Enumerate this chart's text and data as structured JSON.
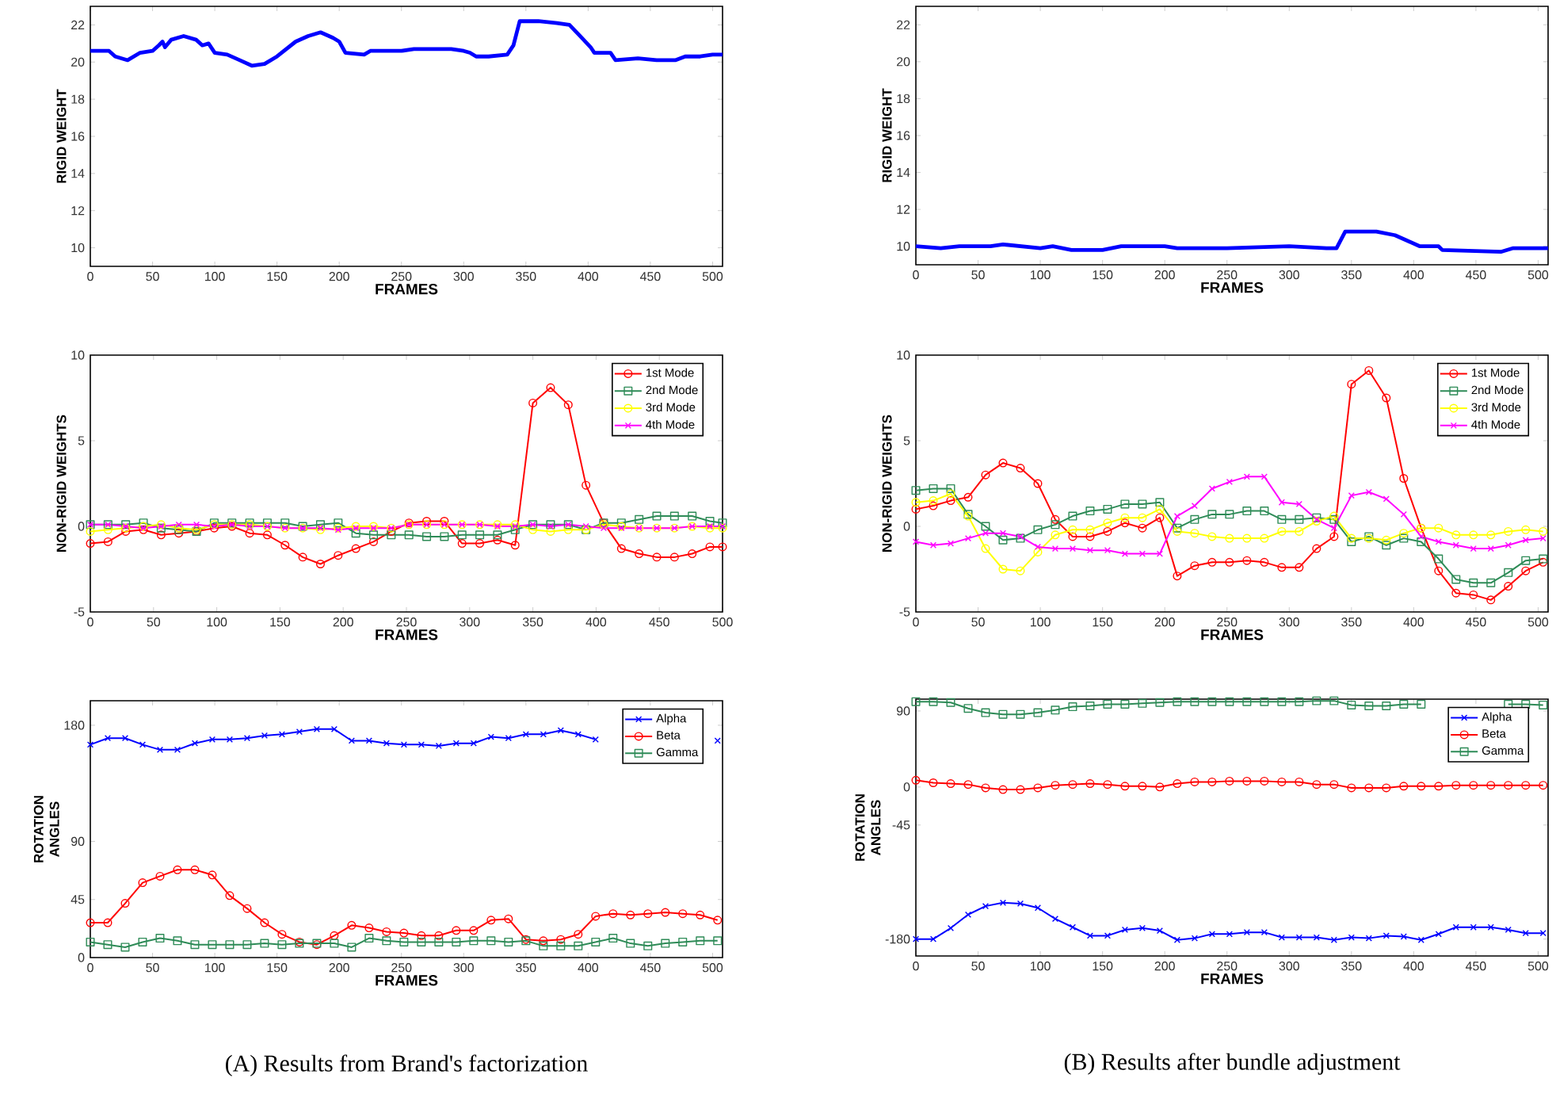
{
  "chart_data": [
    {
      "type": "line",
      "xlabel": "FRAMES",
      "ylabel": "RIGID WEIGHT",
      "xlim": [
        0,
        508
      ],
      "ylim": [
        9,
        23
      ],
      "xticks": [
        0,
        50,
        100,
        150,
        200,
        250,
        300,
        350,
        400,
        450,
        500
      ],
      "yticks": [
        10,
        12,
        14,
        16,
        18,
        20,
        22
      ],
      "grid": false,
      "legend": false,
      "x": [
        0,
        15,
        20,
        30,
        40,
        50,
        55,
        58,
        60,
        65,
        75,
        85,
        90,
        95,
        100,
        110,
        120,
        130,
        140,
        150,
        165,
        175,
        185,
        195,
        200,
        205,
        220,
        225,
        250,
        260,
        290,
        300,
        305,
        310,
        320,
        335,
        340,
        345,
        360,
        375,
        385,
        395,
        402,
        405,
        418,
        422,
        440,
        455,
        470,
        478,
        490,
        500,
        508
      ],
      "series": [
        {
          "color": "#0000ff",
          "marker": "none",
          "values": [
            20.6,
            20.6,
            20.3,
            20.1,
            20.5,
            20.6,
            20.9,
            21.1,
            20.8,
            21.2,
            21.4,
            21.2,
            20.9,
            21.0,
            20.5,
            20.4,
            20.1,
            19.8,
            19.9,
            20.3,
            21.1,
            21.4,
            21.6,
            21.3,
            21.1,
            20.5,
            20.4,
            20.6,
            20.6,
            20.7,
            20.7,
            20.6,
            20.5,
            20.3,
            20.3,
            20.4,
            20.9,
            22.2,
            22.2,
            22.1,
            22.0,
            21.3,
            20.8,
            20.5,
            20.5,
            20.1,
            20.2,
            20.1,
            20.1,
            20.3,
            20.3,
            20.4,
            20.4
          ]
        }
      ]
    },
    {
      "type": "line",
      "xlabel": "FRAMES",
      "ylabel": "RIGID WEIGHT",
      "xlim": [
        0,
        508
      ],
      "ylim": [
        9,
        23
      ],
      "xticks": [
        0,
        50,
        100,
        150,
        200,
        250,
        300,
        350,
        400,
        450,
        500
      ],
      "yticks": [
        10,
        12,
        14,
        16,
        18,
        20,
        22
      ],
      "grid": false,
      "legend": false,
      "x": [
        0,
        20,
        35,
        50,
        60,
        70,
        100,
        110,
        125,
        150,
        165,
        200,
        210,
        250,
        300,
        330,
        338,
        345,
        370,
        385,
        395,
        405,
        420,
        423,
        470,
        480,
        508
      ],
      "series": [
        {
          "color": "#0000ff",
          "marker": "none",
          "values": [
            10.0,
            9.9,
            10.0,
            10.0,
            10.0,
            10.1,
            9.9,
            10.0,
            9.8,
            9.8,
            10.0,
            10.0,
            9.9,
            9.9,
            10.0,
            9.9,
            9.9,
            10.8,
            10.8,
            10.6,
            10.3,
            10.0,
            10.0,
            9.8,
            9.7,
            9.9,
            9.9
          ]
        }
      ]
    },
    {
      "type": "line",
      "xlabel": "FRAMES",
      "ylabel": "NON-RIGID  WEIGHTS",
      "xlim": [
        0,
        500
      ],
      "ylim": [
        -5,
        10
      ],
      "xticks": [
        0,
        50,
        100,
        150,
        200,
        250,
        300,
        350,
        400,
        450,
        500
      ],
      "yticks": [
        -5,
        0,
        5,
        10
      ],
      "grid": false,
      "legend": "top right",
      "x": [
        0,
        14,
        28,
        42,
        56,
        70,
        84,
        98,
        112,
        126,
        140,
        154,
        168,
        182,
        196,
        210,
        224,
        238,
        252,
        266,
        280,
        294,
        308,
        322,
        336,
        350,
        364,
        378,
        392,
        406,
        420,
        434,
        448,
        462,
        476,
        490,
        500
      ],
      "series": [
        {
          "name": "1st Mode",
          "color": "#ff0000",
          "marker": "circle",
          "values": [
            -1.0,
            -0.9,
            -0.3,
            -0.2,
            -0.5,
            -0.4,
            -0.3,
            -0.1,
            0,
            -0.4,
            -0.5,
            -1.1,
            -1.8,
            -2.2,
            -1.7,
            -1.3,
            -0.9,
            -0.3,
            0.2,
            0.3,
            0.3,
            -1.0,
            -1.0,
            -0.8,
            -1.1,
            7.2,
            8.1,
            7.1,
            2.4,
            0.2,
            -1.3,
            -1.6,
            -1.8,
            -1.8,
            -1.6,
            -1.2,
            -1.2
          ]
        },
        {
          "name": "2nd Mode",
          "color": "#2e8b57",
          "marker": "square",
          "values": [
            0.1,
            0.1,
            0.1,
            0.2,
            -0.1,
            -0.2,
            -0.3,
            0.2,
            0.2,
            0.2,
            0.2,
            0.2,
            0.0,
            0.1,
            0.2,
            -0.4,
            -0.5,
            -0.5,
            -0.5,
            -0.6,
            -0.6,
            -0.5,
            -0.5,
            -0.5,
            -0.2,
            0.1,
            0.1,
            0.1,
            -0.2,
            0.2,
            0.2,
            0.4,
            0.6,
            0.6,
            0.6,
            0.3,
            0.2
          ]
        },
        {
          "name": "3rd Mode",
          "color": "#ffff00",
          "marker": "circle",
          "values": [
            -0.3,
            -0.2,
            -0.1,
            0.0,
            0.1,
            -0.1,
            -0.2,
            0.1,
            0.1,
            0.1,
            0.0,
            -0.1,
            -0.1,
            -0.2,
            -0.1,
            0.0,
            0.0,
            -0.1,
            0.1,
            0.1,
            0.1,
            0.1,
            0.1,
            0.1,
            0.1,
            -0.2,
            -0.3,
            -0.2,
            -0.2,
            0.1,
            0.0,
            -0.1,
            -0.1,
            -0.1,
            0.0,
            -0.1,
            -0.1
          ]
        },
        {
          "name": "4th Mode",
          "color": "#ff00ff",
          "marker": "cross",
          "values": [
            0.1,
            0.1,
            0.0,
            -0.1,
            0.0,
            0.1,
            0.1,
            0.0,
            0.1,
            0.0,
            0.0,
            -0.1,
            -0.1,
            -0.1,
            -0.2,
            -0.1,
            -0.1,
            -0.1,
            0.1,
            0.1,
            0.1,
            0.1,
            0.1,
            0.0,
            0.0,
            0.1,
            0.0,
            0.1,
            0.0,
            -0.1,
            -0.1,
            -0.1,
            -0.1,
            -0.1,
            0.0,
            0.0,
            0.0
          ]
        }
      ]
    },
    {
      "type": "line",
      "xlabel": "FRAMES",
      "ylabel": "NON-RIGID  WEIGHTS",
      "xlim": [
        0,
        508
      ],
      "ylim": [
        -5,
        10
      ],
      "xticks": [
        0,
        50,
        100,
        150,
        200,
        250,
        300,
        350,
        400,
        450,
        500
      ],
      "yticks": [
        -5,
        0,
        5,
        10
      ],
      "grid": false,
      "legend": "top right",
      "x": [
        0,
        14,
        28,
        42,
        56,
        70,
        84,
        98,
        112,
        126,
        140,
        154,
        168,
        182,
        196,
        210,
        224,
        238,
        252,
        266,
        280,
        294,
        308,
        322,
        336,
        350,
        364,
        378,
        392,
        406,
        420,
        434,
        448,
        462,
        476,
        490,
        504
      ],
      "series": [
        {
          "name": "1st Mode",
          "color": "#ff0000",
          "marker": "circle",
          "values": [
            1.0,
            1.2,
            1.5,
            1.7,
            3.0,
            3.7,
            3.4,
            2.5,
            0.4,
            -0.6,
            -0.6,
            -0.3,
            0.2,
            -0.1,
            0.5,
            -2.9,
            -2.3,
            -2.1,
            -2.1,
            -2.0,
            -2.1,
            -2.4,
            -2.4,
            -1.3,
            -0.6,
            8.3,
            9.1,
            7.5,
            2.8,
            -0.1,
            -2.6,
            -3.9,
            -4.0,
            -4.3,
            -3.5,
            -2.6,
            -2.1
          ]
        },
        {
          "name": "2nd Mode",
          "color": "#2e8b57",
          "marker": "square",
          "values": [
            2.1,
            2.2,
            2.2,
            0.7,
            0.0,
            -0.8,
            -0.7,
            -0.2,
            0.1,
            0.6,
            0.9,
            1.0,
            1.3,
            1.3,
            1.4,
            -0.1,
            0.4,
            0.7,
            0.7,
            0.9,
            0.9,
            0.4,
            0.4,
            0.5,
            0.4,
            -0.9,
            -0.6,
            -1.1,
            -0.7,
            -0.9,
            -1.9,
            -3.1,
            -3.3,
            -3.3,
            -2.7,
            -2.0,
            -1.9
          ]
        },
        {
          "name": "3rd Mode",
          "color": "#ffff00",
          "marker": "circle",
          "values": [
            1.4,
            1.5,
            1.9,
            0.6,
            -1.3,
            -2.5,
            -2.6,
            -1.5,
            -0.5,
            -0.2,
            -0.2,
            0.2,
            0.5,
            0.5,
            1.0,
            -0.3,
            -0.4,
            -0.6,
            -0.7,
            -0.7,
            -0.7,
            -0.3,
            -0.3,
            0.3,
            0.6,
            -0.7,
            -0.7,
            -0.8,
            -0.4,
            -0.1,
            -0.1,
            -0.5,
            -0.5,
            -0.5,
            -0.3,
            -0.2,
            -0.3
          ]
        },
        {
          "name": "4th Mode",
          "color": "#ff00ff",
          "marker": "cross",
          "values": [
            -0.9,
            -1.1,
            -1.0,
            -0.7,
            -0.4,
            -0.4,
            -0.6,
            -1.2,
            -1.3,
            -1.3,
            -1.4,
            -1.4,
            -1.6,
            -1.6,
            -1.6,
            0.6,
            1.2,
            2.2,
            2.6,
            2.9,
            2.9,
            1.4,
            1.3,
            0.4,
            -0.1,
            1.8,
            2.0,
            1.6,
            0.7,
            -0.6,
            -0.9,
            -1.1,
            -1.3,
            -1.3,
            -1.1,
            -0.8,
            -0.7
          ]
        }
      ]
    },
    {
      "type": "line",
      "xlabel": "FRAMES",
      "ylabel": "ROTATION ANGLES",
      "xlim": [
        0,
        508
      ],
      "ylim": [
        0,
        199
      ],
      "xticks": [
        0,
        50,
        100,
        150,
        200,
        250,
        300,
        350,
        400,
        450,
        500
      ],
      "yticks": [
        0,
        45,
        90,
        180
      ],
      "grid": false,
      "legend": "top right",
      "annotations": [
        "(A) Results from Brand's factorization"
      ],
      "x": [
        0,
        14,
        28,
        42,
        56,
        70,
        84,
        98,
        112,
        126,
        140,
        154,
        168,
        182,
        196,
        210,
        224,
        238,
        252,
        266,
        280,
        294,
        308,
        322,
        336,
        350,
        364,
        378,
        392,
        406,
        420,
        434,
        448,
        462,
        476,
        490,
        504
      ],
      "series": [
        {
          "name": "Alpha",
          "color": "#0000ff",
          "marker": "cross",
          "values": [
            165,
            170,
            170,
            165,
            161,
            161,
            166,
            169,
            169,
            170,
            172,
            173,
            175,
            177,
            177,
            168,
            168,
            166,
            165,
            165,
            164,
            166,
            166,
            171,
            170,
            173,
            173,
            176,
            173,
            169,
            null,
            null,
            null,
            null,
            null,
            null,
            168
          ]
        },
        {
          "name": "Beta",
          "color": "#ff0000",
          "marker": "circle",
          "values": [
            27,
            27,
            42,
            58,
            63,
            68,
            68,
            64,
            48,
            38,
            27,
            18,
            12,
            10,
            17,
            25,
            23,
            20,
            19,
            17,
            17,
            21,
            21,
            29,
            30,
            14,
            13,
            14,
            18,
            32,
            34,
            33,
            34,
            35,
            34,
            33,
            29
          ]
        },
        {
          "name": "Gamma",
          "color": "#2e8b57",
          "marker": "square",
          "values": [
            12,
            10,
            8,
            12,
            15,
            13,
            10,
            10,
            10,
            10,
            11,
            10,
            11,
            11,
            11,
            8,
            15,
            13,
            12,
            12,
            12,
            12,
            13,
            13,
            12,
            13,
            9,
            9,
            9,
            12,
            15,
            11,
            9,
            11,
            12,
            13,
            13
          ]
        }
      ]
    },
    {
      "type": "line",
      "xlabel": "FRAMES",
      "ylabel": "ROTATION ANGLES",
      "xlim": [
        0,
        508
      ],
      "ylim": [
        -200,
        104
      ],
      "xticks": [
        0,
        50,
        100,
        150,
        200,
        250,
        300,
        350,
        400,
        450,
        500
      ],
      "yticks": [
        -180,
        -45,
        0,
        90
      ],
      "grid": false,
      "legend": "top right",
      "annotations": [
        "(B) Results after bundle adjustment"
      ],
      "x": [
        0,
        14,
        28,
        42,
        56,
        70,
        84,
        98,
        112,
        126,
        140,
        154,
        168,
        182,
        196,
        210,
        224,
        238,
        252,
        266,
        280,
        294,
        308,
        322,
        336,
        350,
        364,
        378,
        392,
        406,
        420,
        434,
        448,
        462,
        476,
        490,
        504
      ],
      "series": [
        {
          "name": "Alpha",
          "color": "#0000ff",
          "marker": "cross",
          "values": [
            -180,
            -180,
            -167,
            -151,
            -141,
            -137,
            -138,
            -143,
            -156,
            -166,
            -176,
            -176,
            -169,
            -167,
            -170,
            -181,
            -179,
            -174,
            -174,
            -172,
            -172,
            -178,
            -178,
            -178,
            -181,
            -178,
            -179,
            -176,
            -177,
            -181,
            -174,
            -166,
            -166,
            -166,
            -169,
            -173,
            -173
          ]
        },
        {
          "name": "Beta",
          "color": "#ff0000",
          "marker": "circle",
          "values": [
            8,
            5,
            4,
            3,
            -1,
            -3,
            -3,
            -1,
            2,
            3,
            4,
            3,
            1,
            1,
            0,
            4,
            6,
            6,
            7,
            7,
            7,
            6,
            6,
            3,
            3,
            -1,
            -1,
            -1,
            1,
            1,
            1,
            2,
            2,
            2,
            2,
            2,
            2
          ]
        },
        {
          "name": "Gamma",
          "color": "#2e8b57",
          "marker": "square",
          "values": [
            101,
            101,
            100,
            93,
            88,
            86,
            86,
            88,
            91,
            95,
            96,
            98,
            98,
            99,
            100,
            101,
            101,
            101,
            101,
            101,
            101,
            101,
            101,
            102,
            102,
            97,
            96,
            96,
            98,
            98,
            null,
            null,
            null,
            null,
            98,
            98,
            97
          ]
        }
      ]
    }
  ]
}
